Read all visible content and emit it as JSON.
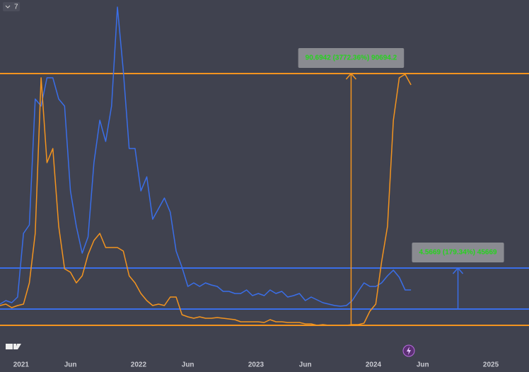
{
  "chart_data": {
    "type": "line",
    "badge": "7",
    "x": [
      2020.82,
      2020.87,
      2020.92,
      2020.97,
      2021.02,
      2021.07,
      2021.12,
      2021.17,
      2021.22,
      2021.27,
      2021.32,
      2021.37,
      2021.42,
      2021.47,
      2021.52,
      2021.57,
      2021.62,
      2021.67,
      2021.72,
      2021.77,
      2021.82,
      2021.87,
      2021.92,
      2021.97,
      2022.02,
      2022.07,
      2022.12,
      2022.17,
      2022.22,
      2022.27,
      2022.32,
      2022.37,
      2022.42,
      2022.47,
      2022.52,
      2022.57,
      2022.62,
      2022.67,
      2022.72,
      2022.77,
      2022.82,
      2022.87,
      2022.92,
      2022.97,
      2023.02,
      2023.07,
      2023.12,
      2023.17,
      2023.22,
      2023.27,
      2023.32,
      2023.37,
      2023.42,
      2023.47,
      2023.52,
      2023.57,
      2023.62,
      2023.67,
      2023.72,
      2023.77,
      2023.82,
      2023.87,
      2023.92,
      2023.97,
      2024.02,
      2024.07,
      2024.12,
      2024.17,
      2024.22,
      2024.27,
      2024.32
    ],
    "series": [
      {
        "color": "#3a6ee8",
        "values": [
          40,
          45,
          42,
          50,
          140,
          152,
          330,
          320,
          360,
          360,
          330,
          320,
          200,
          150,
          112,
          135,
          240,
          300,
          270,
          320,
          460,
          370,
          260,
          260,
          200,
          220,
          160,
          175,
          190,
          170,
          115,
          92,
          65,
          70,
          65,
          70,
          67,
          65,
          58,
          58,
          55,
          55,
          60,
          52,
          55,
          52,
          60,
          55,
          58,
          50,
          52,
          55,
          45,
          50,
          46,
          42,
          40,
          38,
          37,
          38,
          45,
          58,
          70,
          65,
          65,
          70,
          80,
          88,
          78,
          60,
          60
        ]
      },
      {
        "color": "#f3941f",
        "values": [
          38,
          40,
          35,
          38,
          40,
          70,
          140,
          360,
          240,
          260,
          150,
          90,
          85,
          70,
          80,
          110,
          130,
          140,
          120,
          120,
          120,
          115,
          80,
          70,
          55,
          45,
          38,
          40,
          38,
          50,
          50,
          25,
          22,
          20,
          22,
          20,
          20,
          21,
          20,
          19,
          18,
          15,
          15,
          15,
          15,
          14,
          18,
          15,
          15,
          14,
          14,
          14,
          12,
          12,
          10,
          11,
          10,
          10,
          10,
          10,
          11,
          11,
          13,
          30,
          40,
          100,
          150,
          300,
          360,
          365,
          350
        ]
      }
    ],
    "levels": [
      {
        "value": 366,
        "color": "#f3941f"
      },
      {
        "value": 10,
        "color": "#f3941f"
      },
      {
        "value": 91,
        "color": "#3a6ee8"
      },
      {
        "value": 33,
        "color": "#3a6ee8"
      }
    ],
    "measures": [
      {
        "label": "90.6942 (3772.36%) 90694.2",
        "color": "#f3941f",
        "x": 2023.81,
        "from": 10,
        "to": 366
      },
      {
        "label": "4.5669 (179.34%) 45669",
        "color": "#3a6ee8",
        "x": 2024.72,
        "from": 33,
        "to": 91
      }
    ],
    "xlim": [
      2020.82,
      2025.325
    ],
    "ylim": [
      0,
      470
    ],
    "xticks": [
      {
        "value": 2021,
        "label": "2021"
      },
      {
        "value": 2021.42,
        "label": "Jun"
      },
      {
        "value": 2022,
        "label": "2022"
      },
      {
        "value": 2022.42,
        "label": "Jun"
      },
      {
        "value": 2023,
        "label": "2023"
      },
      {
        "value": 2023.42,
        "label": "Jun"
      },
      {
        "value": 2024,
        "label": "2024"
      },
      {
        "value": 2024.42,
        "label": "Jun"
      },
      {
        "value": 2025,
        "label": "2025"
      }
    ]
  }
}
